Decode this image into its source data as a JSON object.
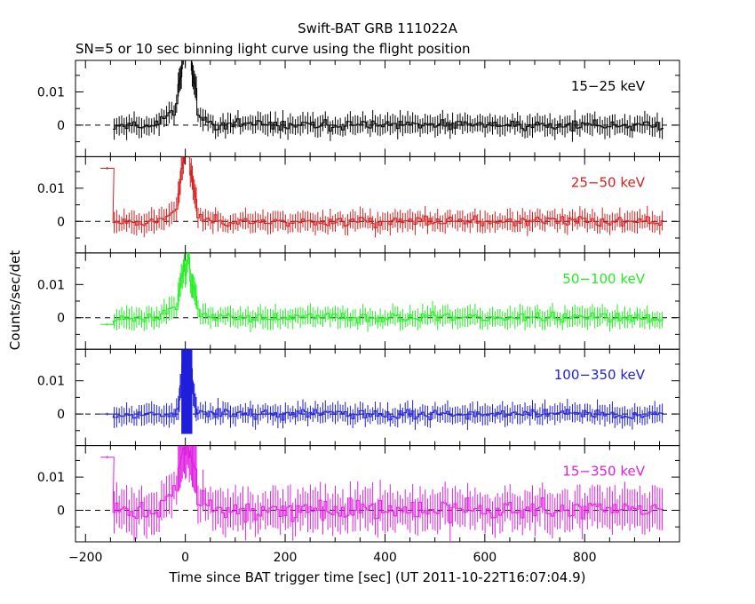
{
  "chart_data": {
    "type": "line",
    "title": "Swift-BAT GRB 111022A",
    "subtitle": "SN=5 or 10 sec binning light curve using the flight position",
    "xlabel": "Time since BAT trigger time [sec] (UT 2011-10-22T16:07:04.9)",
    "ylabel": "Counts/sec/det",
    "xlim": [
      -220,
      990
    ],
    "x_ticks": [
      -200,
      0,
      200,
      400,
      600,
      800
    ],
    "ylim": [
      -0.0095,
      0.0195
    ],
    "y_ticks": [
      0,
      0.01
    ],
    "y_tick_labels": [
      "0",
      "0.01"
    ],
    "panels": [
      {
        "name": "15-25 keV",
        "label": "15−25 keV",
        "color": "#000000",
        "burst_peak": 0.03,
        "burst_base": 0.01,
        "pre": [],
        "noise": 0.0026,
        "seed": 11
      },
      {
        "name": "25-50 keV",
        "label": "25−50 keV",
        "color": "#d42020",
        "burst_peak": 0.028,
        "burst_base": 0.006,
        "pre": [
          [
            -170,
            -143,
            0.016
          ]
        ],
        "noise": 0.0026,
        "seed": 23
      },
      {
        "name": "50-100 keV",
        "label": "50−100 keV",
        "color": "#22ee22",
        "burst_peak": 0.02,
        "burst_base": 0.006,
        "pre": [
          [
            -170,
            -143,
            -0.002
          ]
        ],
        "noise": 0.0026,
        "seed": 37
      },
      {
        "name": "100-350 keV",
        "label": "100−350 keV",
        "color": "#1f1fd9",
        "burst_peak": 0.03,
        "burst_base": 0.0,
        "burst_filled": true,
        "pre": [
          [
            -170,
            -143,
            0.0
          ]
        ],
        "noise": 0.0026,
        "seed": 53
      },
      {
        "name": "15-350 keV",
        "label": "15−350 keV",
        "color": "#e020e0",
        "burst_peak": 0.02,
        "burst_base": 0.012,
        "pre": [
          [
            -170,
            -143,
            0.016
          ]
        ],
        "noise": 0.0052,
        "seed": 71
      }
    ]
  }
}
